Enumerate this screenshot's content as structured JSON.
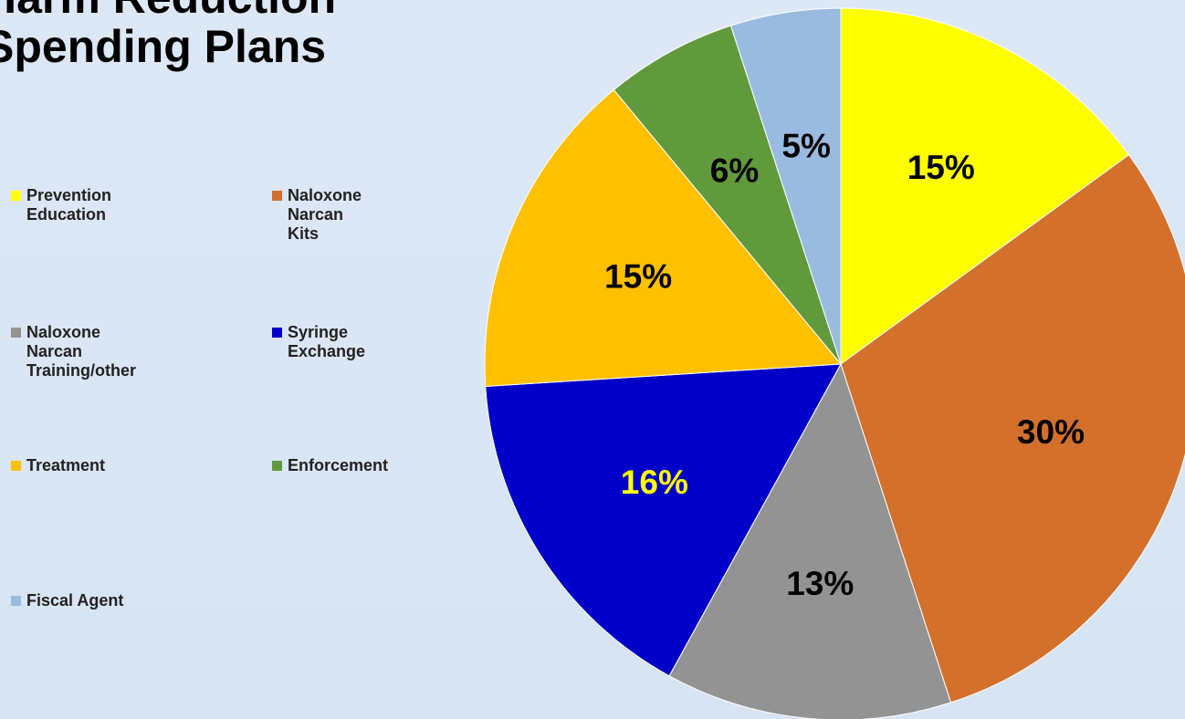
{
  "title_lines": [
    "Harm Reduction",
    "Spending Plans"
  ],
  "chart_data": {
    "type": "pie",
    "title": "Harm Reduction Spending Plans",
    "legend_position": "left",
    "start_angle": "12 o'clock",
    "direction": "clockwise",
    "slices": [
      {
        "label": "Prevention\nEducation",
        "value": 15,
        "display": "15%",
        "color": "#ffff00",
        "label_color": "#000000"
      },
      {
        "label": "Naloxone\nNarcan\nKits",
        "value": 30,
        "display": "30%",
        "color": "#d2702c",
        "label_color": "#000000"
      },
      {
        "label": "Naloxone\nNarcan\nTraining/other",
        "value": 13,
        "display": "13%",
        "color": "#939393",
        "label_color": "#000000"
      },
      {
        "label": "Syringe\nExchange",
        "value": 16,
        "display": "16%",
        "color": "#0000c8",
        "label_color": "#ffff00"
      },
      {
        "label": "Treatment",
        "value": 15,
        "display": "15%",
        "color": "#ffc000",
        "label_color": "#000000"
      },
      {
        "label": "Enforcement",
        "value": 6,
        "display": "6%",
        "color": "#619a3c",
        "label_color": "#000000"
      },
      {
        "label": "Fiscal Agent",
        "value": 5,
        "display": "5%",
        "color": "#9abbe0",
        "label_color": "#000000"
      }
    ]
  }
}
